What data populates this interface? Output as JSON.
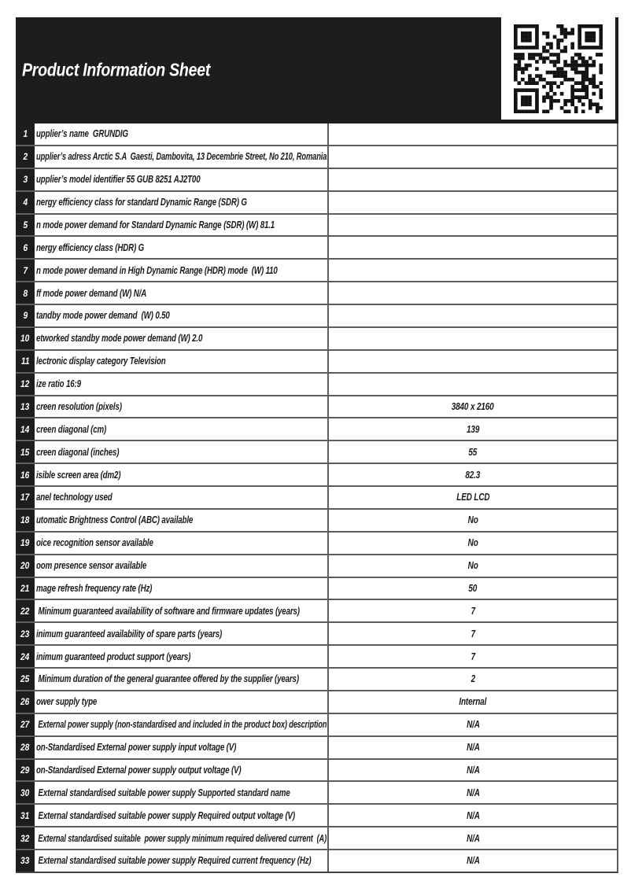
{
  "header": {
    "title": "Product Information Sheet"
  },
  "table": {
    "rows": [
      {
        "num": "1",
        "label": "upplier’s name  GRUNDIG",
        "value": ""
      },
      {
        "num": "2",
        "label": "upplier’s adress Arctic S.A  Gaesti, Dambovita, 13 Decembrie Street, No 210, Romania",
        "value": ""
      },
      {
        "num": "3",
        "label": "upplier’s model identifier 55 GUB 8251 AJ2T00",
        "value": ""
      },
      {
        "num": "4",
        "label": "nergy efficiency class for standard Dynamic Range (SDR) G",
        "value": ""
      },
      {
        "num": "5",
        "label": "n mode power demand for Standard Dynamic Range (SDR) (W) 81.1",
        "value": ""
      },
      {
        "num": "6",
        "label": "nergy efficiency class (HDR) G",
        "value": ""
      },
      {
        "num": "7",
        "label": "n mode power demand in High Dynamic Range (HDR) mode  (W) 110",
        "value": ""
      },
      {
        "num": "8",
        "label": "ff mode power demand (W) N/A",
        "value": ""
      },
      {
        "num": "9",
        "label": "tandby mode power demand  (W) 0.50",
        "value": ""
      },
      {
        "num": "10",
        "label": "etworked standby mode power demand (W) 2.0",
        "value": ""
      },
      {
        "num": "11",
        "label": "lectronic display category Television",
        "value": ""
      },
      {
        "num": "12",
        "label": "ize ratio 16:9",
        "value": ""
      },
      {
        "num": "13",
        "label": "creen resolution (pixels)",
        "value": "3840 x 2160"
      },
      {
        "num": "14",
        "label": "creen diagonal (cm)",
        "value": "139"
      },
      {
        "num": "15",
        "label": "creen diagonal (inches)",
        "value": "55"
      },
      {
        "num": "16",
        "label": "isible screen area (dm2)",
        "value": "82.3"
      },
      {
        "num": "17",
        "label": "anel technology used",
        "value": "LED LCD"
      },
      {
        "num": "18",
        "label": "utomatic Brightness Control (ABC) available",
        "value": "No"
      },
      {
        "num": "19",
        "label": "oice recognition sensor available",
        "value": "No"
      },
      {
        "num": "20",
        "label": "oom presence sensor available",
        "value": "No"
      },
      {
        "num": "21",
        "label": "mage refresh frequency rate (Hz)",
        "value": "50"
      },
      {
        "num": "22",
        "label": " Minimum guaranteed availability of software and firmware updates (years)",
        "value": "7"
      },
      {
        "num": "23",
        "label": "inimum guaranteed availability of spare parts (years)",
        "value": "7"
      },
      {
        "num": "24",
        "label": "inimum guaranteed product support (years)",
        "value": "7"
      },
      {
        "num": "25",
        "label": " Minimum duration of the general guarantee offered by the supplier (years)",
        "value": "2"
      },
      {
        "num": "26",
        "label": "ower supply type",
        "value": "Internal"
      },
      {
        "num": "27",
        "label": " External power supply (non-standardised and included in the product box) description",
        "value": "N/A"
      },
      {
        "num": "28",
        "label": "on-Standardised External power supply input voltage (V)",
        "value": "N/A"
      },
      {
        "num": "29",
        "label": "on-Standardised External power supply output voltage (V)",
        "value": "N/A"
      },
      {
        "num": "30",
        "label": " External standardised suitable power supply Supported standard name",
        "value": "N/A"
      },
      {
        "num": "31",
        "label": " External standardised suitable power supply Required output voltage (V)",
        "value": "N/A"
      },
      {
        "num": "32",
        "label": " External standardised suitable  power supply minimum required delivered current  (A)",
        "value": "N/A"
      },
      {
        "num": "33",
        "label": " External standardised suitable power supply Required current frequency (Hz)",
        "value": "N/A"
      }
    ]
  }
}
